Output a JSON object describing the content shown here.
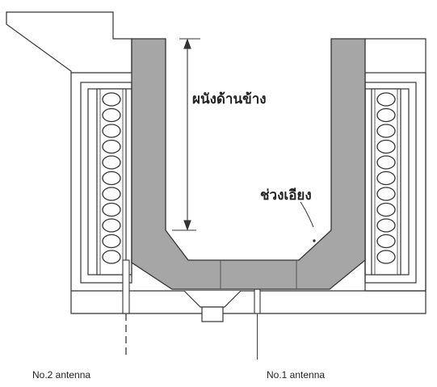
{
  "labels": {
    "side_wall": "ผนังด้านข้าง",
    "slope_section": "ช่วงเอียง",
    "antenna_2": "No.2 antenna",
    "antenna_1": "No.1 antenna"
  },
  "colors": {
    "refractory": "#a6a6a6",
    "line": "#333333",
    "background": "#ffffff"
  }
}
